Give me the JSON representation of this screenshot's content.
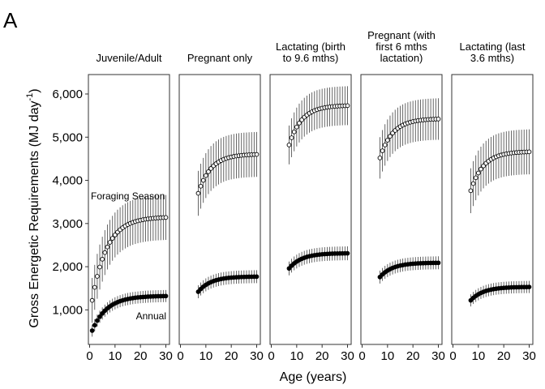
{
  "figure": {
    "panel_label": "A",
    "ylabel_main": "Gross Energetic Requirements (MJ day",
    "ylabel_sup": "-1",
    "ylabel_close": ")",
    "xlabel": "Age (years)"
  },
  "chart_data": {
    "type": "scatter",
    "xlabel": "Age (years)",
    "ylabel": "Gross Energetic Requirements (MJ day-1)",
    "xlim": [
      0,
      30
    ],
    "ylim": [
      200,
      6450
    ],
    "x_ticks": [
      0,
      10,
      20,
      30
    ],
    "x_tick_labels": [
      "0",
      "10",
      "20",
      "30"
    ],
    "y_ticks": [
      1000,
      2000,
      3000,
      4000,
      5000,
      6000
    ],
    "y_tick_labels": [
      "1,000",
      "2,000",
      "3,000",
      "4,000",
      "5,000",
      "6,000"
    ],
    "grid": false,
    "series_styles": {
      "Foraging Season": {
        "marker": "open-circle",
        "fill": "#ffffff",
        "stroke": "#000000"
      },
      "Annual": {
        "marker": "filled-circle",
        "fill": "#000000",
        "stroke": "#000000"
      }
    },
    "panels": [
      {
        "title": "Juvenile/Adult",
        "title_lines": [
          "Juvenile/Adult"
        ],
        "annotations": [
          {
            "text": "Foraging Season",
            "series": "Foraging Season"
          },
          {
            "text": "Annual",
            "series": "Annual"
          }
        ],
        "series": [
          {
            "name": "Foraging Season",
            "age_start": 1,
            "age_end": 30,
            "y_start": 1220,
            "y_end": 3140,
            "k": 0.17,
            "err": 520
          },
          {
            "name": "Annual",
            "age_start": 1,
            "age_end": 30,
            "y_start": 520,
            "y_end": 1320,
            "k": 0.17,
            "err": 140
          }
        ]
      },
      {
        "title": "Pregnant only",
        "title_lines": [
          "Pregnant only"
        ],
        "annotations": [],
        "series": [
          {
            "name": "Foraging Season",
            "age_start": 7,
            "age_end": 30,
            "y_start": 3700,
            "y_end": 4600,
            "k": 0.2,
            "err": 520
          },
          {
            "name": "Annual",
            "age_start": 7,
            "age_end": 30,
            "y_start": 1420,
            "y_end": 1770,
            "k": 0.2,
            "err": 150
          }
        ]
      },
      {
        "title": "Lactating (birth to 9.6 mths)",
        "title_lines": [
          "Lactating (birth",
          "to 9.6 mths)"
        ],
        "annotations": [],
        "series": [
          {
            "name": "Foraging Season",
            "age_start": 7,
            "age_end": 30,
            "y_start": 4820,
            "y_end": 5730,
            "k": 0.2,
            "err": 450
          },
          {
            "name": "Annual",
            "age_start": 7,
            "age_end": 30,
            "y_start": 1960,
            "y_end": 2310,
            "k": 0.2,
            "err": 160
          }
        ]
      },
      {
        "title": "Pregnant (with first 6 mths lactation)",
        "title_lines": [
          "Pregnant (with",
          "first 6 mths",
          "lactation)"
        ],
        "annotations": [],
        "series": [
          {
            "name": "Foraging Season",
            "age_start": 7,
            "age_end": 30,
            "y_start": 4520,
            "y_end": 5420,
            "k": 0.2,
            "err": 480
          },
          {
            "name": "Annual",
            "age_start": 7,
            "age_end": 30,
            "y_start": 1760,
            "y_end": 2090,
            "k": 0.2,
            "err": 150
          }
        ]
      },
      {
        "title": "Lactating (last 3.6 mths)",
        "title_lines": [
          "Lactating (last",
          "3.6 mths)"
        ],
        "annotations": [],
        "series": [
          {
            "name": "Foraging Season",
            "age_start": 7,
            "age_end": 30,
            "y_start": 3760,
            "y_end": 4660,
            "k": 0.2,
            "err": 520
          },
          {
            "name": "Annual",
            "age_start": 7,
            "age_end": 30,
            "y_start": 1220,
            "y_end": 1530,
            "k": 0.2,
            "err": 140
          }
        ]
      }
    ]
  }
}
